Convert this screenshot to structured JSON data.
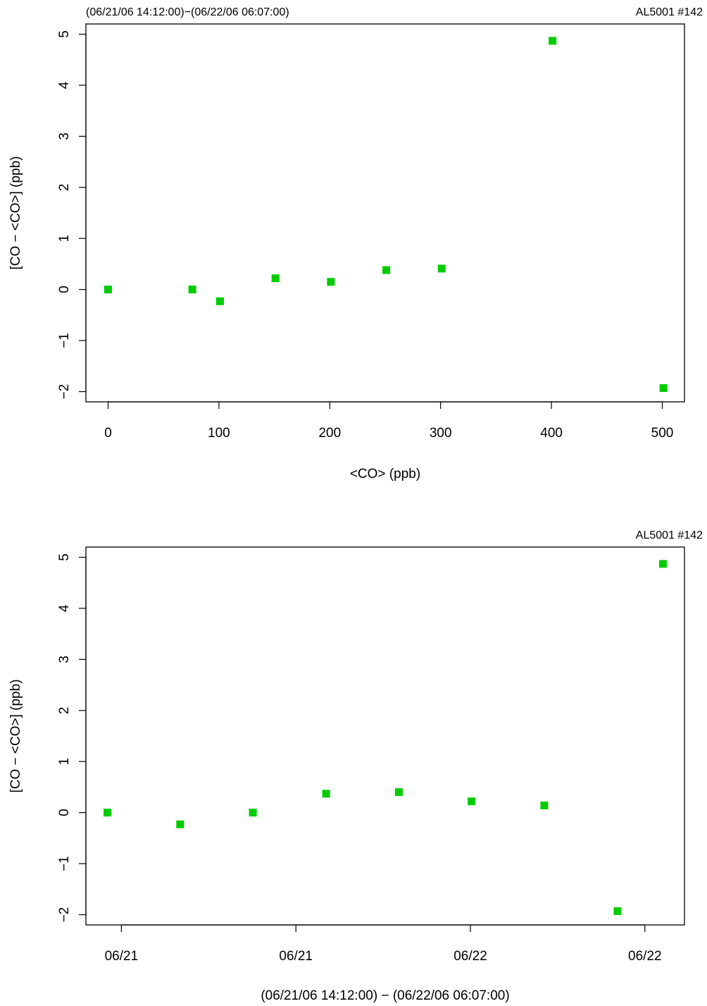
{
  "page": {
    "top_header_left": "(06/21/06 14:12:00)−(06/22/06 06:07:00)",
    "top_header_right": "AL5001 #142",
    "bottom_header_right": "AL5001 #142"
  },
  "chart_data": [
    {
      "type": "scatter",
      "title": "",
      "xlabel": "<CO> (ppb)",
      "ylabel": "[CO − <CO>] (ppb)",
      "xlim": [
        -20,
        520
      ],
      "ylim": [
        -2.2,
        5.2
      ],
      "x_ticks": [
        0,
        100,
        200,
        300,
        400,
        500
      ],
      "x_tick_labels": [
        "0",
        "100",
        "200",
        "300",
        "400",
        "500"
      ],
      "y_ticks": [
        -2,
        -1,
        0,
        1,
        2,
        3,
        4,
        5
      ],
      "y_tick_labels": [
        "−2",
        "−1",
        "0",
        "1",
        "2",
        "3",
        "4",
        "5"
      ],
      "marker_color": "#00cc00",
      "points": [
        {
          "x": 0,
          "y": 0.0
        },
        {
          "x": 76,
          "y": 0.0
        },
        {
          "x": 101,
          "y": -0.23
        },
        {
          "x": 151,
          "y": 0.22
        },
        {
          "x": 201,
          "y": 0.15
        },
        {
          "x": 251,
          "y": 0.38
        },
        {
          "x": 301,
          "y": 0.41
        },
        {
          "x": 401,
          "y": 4.87
        },
        {
          "x": 501,
          "y": -1.93
        }
      ]
    },
    {
      "type": "scatter",
      "title": "",
      "xlabel": "(06/21/06 14:12:00) − (06/22/06 06:07:00)",
      "ylabel": "[CO − <CO>] (ppb)",
      "xlim": [
        "06/21/06 13:35:00",
        "06/22/06 06:44:00"
      ],
      "ylim": [
        -2.2,
        5.2
      ],
      "x_ticks": [
        "06/21/06 14:36:00",
        "06/21/06 19:36:00",
        "06/22/06 00:36:00",
        "06/22/06 05:36:00"
      ],
      "x_tick_labels": [
        "06/21",
        "06/21",
        "06/22",
        "06/22"
      ],
      "y_ticks": [
        -2,
        -1,
        0,
        1,
        2,
        3,
        4,
        5
      ],
      "y_tick_labels": [
        "−2",
        "−1",
        "0",
        "1",
        "2",
        "3",
        "4",
        "5"
      ],
      "marker_color": "#00cc00",
      "points": [
        {
          "x": "06/21/06 14:12:00",
          "y": 0.0
        },
        {
          "x": "06/21/06 16:17:00",
          "y": -0.23
        },
        {
          "x": "06/21/06 18:22:00",
          "y": 0.0
        },
        {
          "x": "06/21/06 20:28:00",
          "y": 0.37
        },
        {
          "x": "06/21/06 22:33:00",
          "y": 0.4
        },
        {
          "x": "06/22/06 00:38:00",
          "y": 0.22
        },
        {
          "x": "06/22/06 02:43:00",
          "y": 0.14
        },
        {
          "x": "06/22/06 04:49:00",
          "y": -1.93
        },
        {
          "x": "06/22/06 06:07:00",
          "y": 4.87
        }
      ]
    }
  ]
}
